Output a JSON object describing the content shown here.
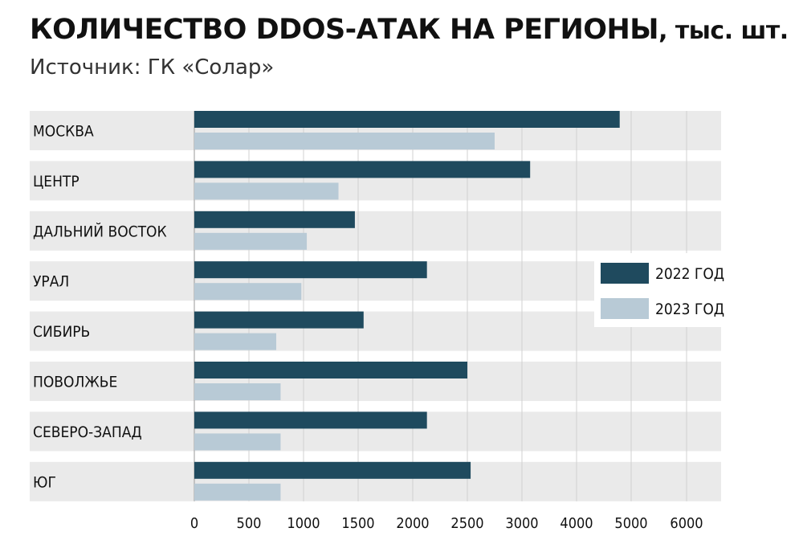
{
  "header": {
    "title": "КОЛИЧЕСТВО DDOS-АТАК НА РЕГИОНЫ",
    "title_unit": ", тыс. шт.",
    "subtitle": "Источник: ГК «Солар»"
  },
  "colors": {
    "series_2022": "#1f4a5e",
    "series_2023": "#b8cad6",
    "row_band": "#eaeaea",
    "gridline": "#d0d0d0"
  },
  "chart_data": {
    "type": "bar",
    "orientation": "horizontal",
    "title": "КОЛИЧЕСТВО DDOS-АТАК НА РЕГИОНЫ, тыс. шт.",
    "categories": [
      "МОСКВА",
      "ЦЕНТР",
      "ДАЛЬНИЙ ВОСТОК",
      "УРАЛ",
      "СИБИРЬ",
      "ПОВОЛЖЬЕ",
      "СЕВЕРО-ЗАПАД",
      "ЮГ"
    ],
    "series": [
      {
        "name": "2022 ГОД",
        "values": [
          4790,
          3150,
          1470,
          2130,
          1550,
          2500,
          2130,
          2530
        ]
      },
      {
        "name": "2023 ГОД",
        "values": [
          2750,
          1320,
          1030,
          980,
          750,
          790,
          790,
          790
        ]
      }
    ],
    "xticks": [
      "0",
      "500",
      "1000",
      "1500",
      "2000",
      "2500",
      "3000",
      "4000",
      "5000",
      "6000"
    ],
    "legend_position": "right",
    "grid": true
  }
}
